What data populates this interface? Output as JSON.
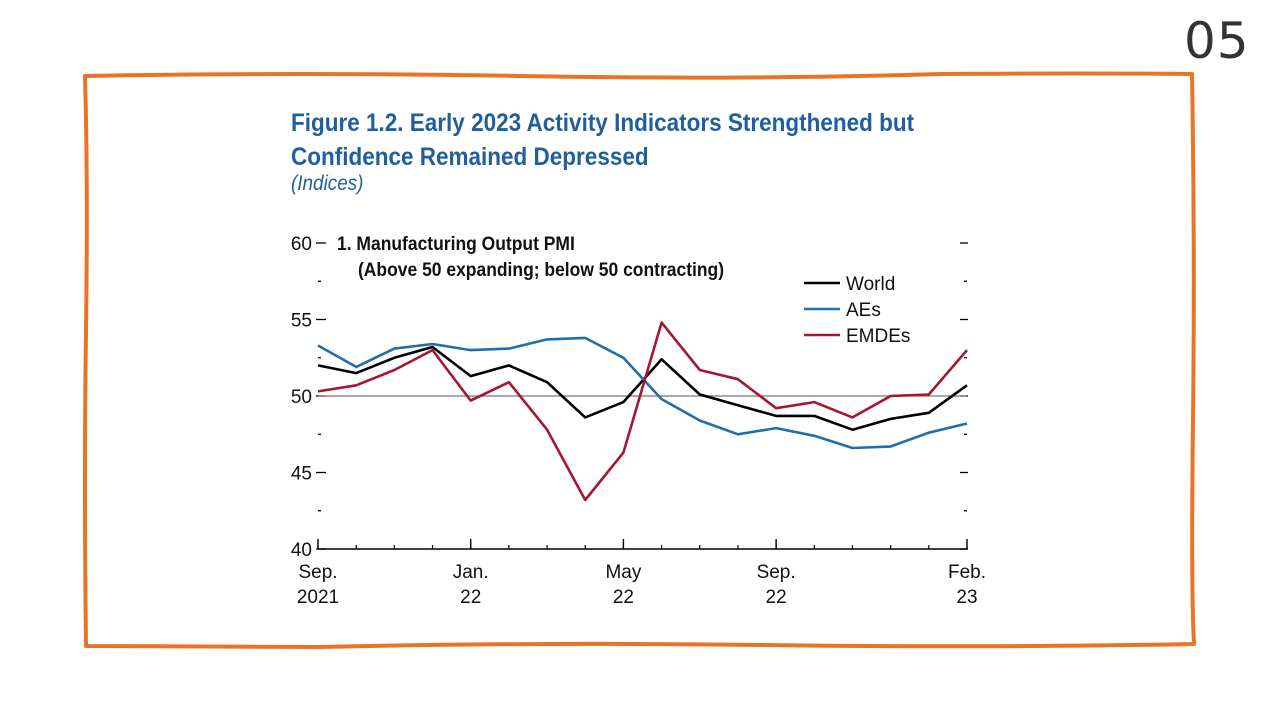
{
  "slide": {
    "number": "05",
    "frame_color": "#e8742a"
  },
  "figure": {
    "title_line1": "Figure 1.2.  Early 2023 Activity Indicators Strengthened but",
    "title_line2": "Confidence Remained Depressed",
    "subtitle": "(Indices)",
    "title_color": "#1f5f9e"
  },
  "chart_data": {
    "type": "line",
    "panel_title": "1. Manufacturing Output PMI",
    "panel_subtitle": "(Above 50 expanding; below 50 contracting)",
    "x": [
      "Sep-21",
      "Oct-21",
      "Nov-21",
      "Dec-21",
      "Jan-22",
      "Feb-22",
      "Mar-22",
      "Apr-22",
      "May-22",
      "Jun-22",
      "Jul-22",
      "Aug-22",
      "Sep-22",
      "Oct-22",
      "Nov-22",
      "Dec-22",
      "Jan-23",
      "Feb-23"
    ],
    "x_tick_labels": [
      {
        "index": 0,
        "line1": "Sep.",
        "line2": "2021"
      },
      {
        "index": 4,
        "line1": "Jan.",
        "line2": "22"
      },
      {
        "index": 8,
        "line1": "May",
        "line2": "22"
      },
      {
        "index": 12,
        "line1": "Sep.",
        "line2": "22"
      },
      {
        "index": 17,
        "line1": "Feb.",
        "line2": "23"
      }
    ],
    "y_ticks": [
      40,
      45,
      50,
      55,
      60
    ],
    "ylim": [
      40,
      60
    ],
    "reference_line": 50,
    "legend_position": "top-right",
    "series": [
      {
        "name": "World",
        "color": "#000000",
        "values": [
          52.0,
          51.5,
          52.5,
          53.2,
          51.3,
          52.0,
          50.9,
          48.6,
          49.6,
          52.4,
          50.1,
          49.4,
          48.7,
          48.7,
          47.8,
          48.5,
          48.9,
          50.7
        ]
      },
      {
        "name": "AEs",
        "color": "#1f6fa8",
        "values": [
          53.3,
          51.9,
          53.1,
          53.4,
          53.0,
          53.1,
          53.7,
          53.8,
          52.5,
          49.8,
          48.4,
          47.5,
          47.9,
          47.4,
          46.6,
          46.7,
          47.6,
          48.2
        ]
      },
      {
        "name": "EMDEs",
        "color": "#a3182f",
        "values": [
          50.3,
          50.7,
          51.7,
          53.0,
          49.7,
          50.9,
          47.8,
          43.2,
          46.3,
          54.8,
          51.7,
          51.1,
          49.2,
          49.6,
          48.6,
          50.0,
          50.1,
          53.0
        ]
      }
    ]
  }
}
